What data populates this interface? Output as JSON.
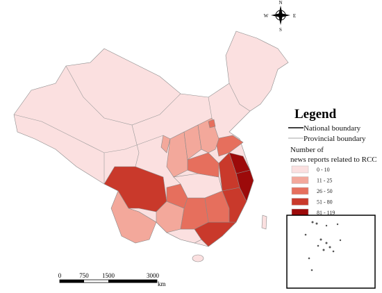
{
  "legend": {
    "title": "Legend",
    "boundaries": [
      "National boundary",
      "Provincial boundary"
    ],
    "class_title": [
      "Number of",
      "news reports related to RCC"
    ],
    "classes": [
      {
        "label": "0 - 10",
        "color": "#fbe0e0"
      },
      {
        "label": "11 - 25",
        "color": "#f3a89b"
      },
      {
        "label": "26 - 50",
        "color": "#e66f5d"
      },
      {
        "label": "51 - 80",
        "color": "#c9392b"
      },
      {
        "label": "81 - 119",
        "color": "#9c0a0a"
      }
    ]
  },
  "scale_bar": {
    "labels": [
      "0",
      "750",
      "1500",
      "3000"
    ],
    "unit": "km"
  },
  "compass": {
    "n": "N",
    "s": "S",
    "w": "W",
    "e": "E"
  }
}
